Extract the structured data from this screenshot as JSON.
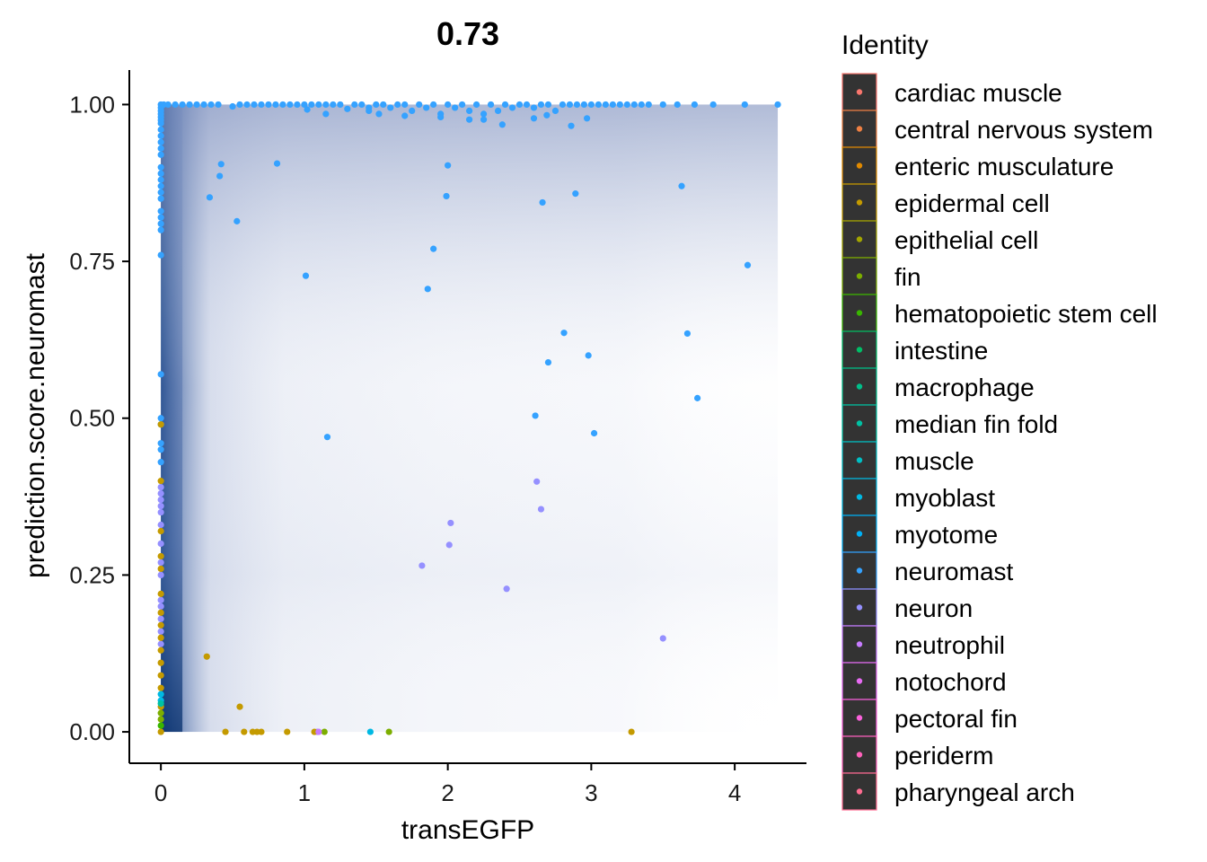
{
  "chart_data": {
    "type": "scatter",
    "title": "0.73",
    "xlabel": "transEGFP",
    "ylabel": "prediction.score.neuromast",
    "xlim": [
      -0.22,
      4.5
    ],
    "ylim": [
      -0.05,
      1.055
    ],
    "x_ticks": [
      "0",
      "1",
      "2",
      "3",
      "4"
    ],
    "x_tick_values": [
      0,
      1,
      2,
      3,
      4
    ],
    "y_ticks": [
      "0.00",
      "0.25",
      "0.50",
      "0.75",
      "1.00"
    ],
    "y_tick_values": [
      0,
      0.25,
      0.5,
      0.75,
      1.0
    ],
    "grid": false,
    "legend_position": "right",
    "density_overlay": true,
    "legend": {
      "title": "Identity",
      "items": [
        {
          "label": "cardiac muscle",
          "color": "#F8766D"
        },
        {
          "label": "central nervous system",
          "color": "#EE8043"
        },
        {
          "label": "enteric musculature",
          "color": "#E18A00"
        },
        {
          "label": "epidermal cell",
          "color": "#C49A00"
        },
        {
          "label": "epithelial cell",
          "color": "#A3A500"
        },
        {
          "label": "fin",
          "color": "#7CAE00"
        },
        {
          "label": "hematopoietic stem cell",
          "color": "#39B600"
        },
        {
          "label": "intestine",
          "color": "#00BE67"
        },
        {
          "label": "macrophage",
          "color": "#00BF8A"
        },
        {
          "label": "median fin fold",
          "color": "#00C1A3"
        },
        {
          "label": "muscle",
          "color": "#00BFC4"
        },
        {
          "label": "myoblast",
          "color": "#00B9E3"
        },
        {
          "label": "myotome",
          "color": "#00B0F6"
        },
        {
          "label": "neuromast",
          "color": "#35A2FF"
        },
        {
          "label": "neuron",
          "color": "#9590FF"
        },
        {
          "label": "neutrophil",
          "color": "#C77CFF"
        },
        {
          "label": "notochord",
          "color": "#E76BF3"
        },
        {
          "label": "pectoral fin",
          "color": "#FA62DB"
        },
        {
          "label": "periderm",
          "color": "#FF62BC"
        },
        {
          "label": "pharyngeal arch",
          "color": "#FF6C91"
        }
      ]
    },
    "series": [
      {
        "identity": "neuromast",
        "points": [
          [
            0,
            1.0
          ],
          [
            0,
            0.995
          ],
          [
            0,
            0.99
          ],
          [
            0,
            0.985
          ],
          [
            0,
            0.98
          ],
          [
            0,
            0.975
          ],
          [
            0,
            0.97
          ],
          [
            0,
            0.96
          ],
          [
            0,
            0.95
          ],
          [
            0,
            0.94
          ],
          [
            0,
            0.93
          ],
          [
            0,
            0.92
          ],
          [
            0,
            0.9
          ],
          [
            0,
            0.89
          ],
          [
            0,
            0.88
          ],
          [
            0,
            0.87
          ],
          [
            0,
            0.86
          ],
          [
            0,
            0.85
          ],
          [
            0,
            0.83
          ],
          [
            0,
            0.82
          ],
          [
            0,
            0.81
          ],
          [
            0,
            0.8
          ],
          [
            0,
            0.76
          ],
          [
            0,
            0.57
          ],
          [
            0,
            0.5
          ],
          [
            0,
            0.49
          ],
          [
            0,
            0.46
          ],
          [
            0,
            0.45
          ],
          [
            0,
            0.43
          ],
          [
            0.02,
            1.0
          ],
          [
            0.05,
            1.0
          ],
          [
            0.1,
            1.0
          ],
          [
            0.15,
            1.0
          ],
          [
            0.2,
            1.0
          ],
          [
            0.25,
            1.0
          ],
          [
            0.3,
            1.0
          ],
          [
            0.35,
            1.0
          ],
          [
            0.4,
            1.0
          ],
          [
            0.5,
            0.997
          ],
          [
            0.55,
            1.0
          ],
          [
            0.6,
            1.0
          ],
          [
            0.65,
            1.0
          ],
          [
            0.7,
            1.0
          ],
          [
            0.75,
            1.0
          ],
          [
            0.8,
            1.0
          ],
          [
            0.85,
            1.0
          ],
          [
            0.9,
            1.0
          ],
          [
            0.95,
            1.0
          ],
          [
            1.0,
            1.0
          ],
          [
            1.02,
            0.992
          ],
          [
            1.05,
            1.0
          ],
          [
            1.1,
            1.0
          ],
          [
            1.15,
            1.0
          ],
          [
            1.2,
            1.0
          ],
          [
            1.25,
            1.0
          ],
          [
            1.3,
            0.993
          ],
          [
            1.35,
            1.0
          ],
          [
            1.4,
            1.0
          ],
          [
            1.45,
            0.995
          ],
          [
            1.5,
            1.0
          ],
          [
            1.55,
            1.0
          ],
          [
            1.6,
            0.995
          ],
          [
            1.65,
            1.0
          ],
          [
            1.7,
            1.0
          ],
          [
            1.75,
            0.99
          ],
          [
            1.8,
            1.0
          ],
          [
            1.85,
            0.995
          ],
          [
            1.9,
            1.0
          ],
          [
            1.95,
            0.985
          ],
          [
            2.0,
            1.0
          ],
          [
            2.05,
            0.995
          ],
          [
            2.1,
            1.0
          ],
          [
            2.15,
            0.99
          ],
          [
            2.2,
            1.0
          ],
          [
            2.25,
            0.985
          ],
          [
            2.3,
            1.0
          ],
          [
            2.35,
            0.99
          ],
          [
            2.4,
            1.0
          ],
          [
            2.45,
            0.995
          ],
          [
            2.5,
            1.0
          ],
          [
            2.55,
            1.0
          ],
          [
            2.6,
            0.995
          ],
          [
            2.65,
            1.0
          ],
          [
            2.7,
            1.0
          ],
          [
            2.75,
            0.99
          ],
          [
            2.8,
            1.0
          ],
          [
            2.85,
            1.0
          ],
          [
            2.9,
            1.0
          ],
          [
            2.95,
            1.0
          ],
          [
            3.0,
            1.0
          ],
          [
            3.05,
            1.0
          ],
          [
            3.1,
            1.0
          ],
          [
            3.15,
            1.0
          ],
          [
            3.2,
            1.0
          ],
          [
            3.25,
            1.0
          ],
          [
            3.3,
            1.0
          ],
          [
            3.35,
            1.0
          ],
          [
            3.4,
            1.0
          ],
          [
            3.5,
            1.0
          ],
          [
            3.6,
            1.0
          ],
          [
            3.72,
            1.0
          ],
          [
            3.85,
            1.0
          ],
          [
            4.07,
            1.0
          ],
          [
            4.3,
            1.0
          ],
          [
            1.15,
            0.985
          ],
          [
            1.45,
            0.99
          ],
          [
            1.52,
            0.985
          ],
          [
            1.7,
            0.982
          ],
          [
            1.95,
            0.98
          ],
          [
            2.15,
            0.976
          ],
          [
            2.25,
            0.976
          ],
          [
            2.38,
            0.968
          ],
          [
            2.6,
            0.978
          ],
          [
            2.69,
            0.983
          ],
          [
            2.86,
            0.966
          ],
          [
            2.97,
            0.978
          ],
          [
            0.34,
            0.852
          ],
          [
            0.41,
            0.886
          ],
          [
            0.42,
            0.905
          ],
          [
            0.53,
            0.814
          ],
          [
            0.81,
            0.906
          ],
          [
            1.01,
            0.727
          ],
          [
            1.16,
            0.47
          ],
          [
            1.86,
            0.706
          ],
          [
            1.9,
            0.77
          ],
          [
            1.99,
            0.854
          ],
          [
            2.0,
            0.903
          ],
          [
            2.61,
            0.504
          ],
          [
            2.66,
            0.844
          ],
          [
            2.7,
            0.589
          ],
          [
            2.81,
            0.636
          ],
          [
            2.89,
            0.858
          ],
          [
            2.98,
            0.6
          ],
          [
            3.02,
            0.476
          ],
          [
            3.63,
            0.87
          ],
          [
            3.67,
            0.635
          ],
          [
            3.74,
            0.532
          ],
          [
            4.09,
            0.744
          ]
        ]
      },
      {
        "identity": "neuron",
        "points": [
          [
            1.82,
            0.265
          ],
          [
            2.01,
            0.298
          ],
          [
            2.02,
            0.333
          ],
          [
            2.41,
            0.228
          ],
          [
            2.62,
            0.399
          ],
          [
            2.65,
            0.355
          ],
          [
            3.5,
            0.149
          ],
          [
            1.09,
            0.0
          ],
          [
            0,
            0.39
          ],
          [
            0,
            0.38
          ],
          [
            0,
            0.37
          ],
          [
            0,
            0.36
          ],
          [
            0,
            0.35
          ],
          [
            0,
            0.33
          ],
          [
            0,
            0.3
          ],
          [
            0,
            0.27
          ],
          [
            0,
            0.25
          ],
          [
            0,
            0.21
          ],
          [
            0,
            0.2
          ],
          [
            0,
            0.18
          ],
          [
            0,
            0.16
          ],
          [
            0,
            0.14
          ]
        ]
      },
      {
        "identity": "epidermal cell",
        "points": [
          [
            0.32,
            0.12
          ],
          [
            0.55,
            0.04
          ],
          [
            0.45,
            0.0
          ],
          [
            0.58,
            0.0
          ],
          [
            0.64,
            0.0
          ],
          [
            0.67,
            0.0
          ],
          [
            0.7,
            0.0
          ],
          [
            0.88,
            0.0
          ],
          [
            1.07,
            0.0
          ],
          [
            3.28,
            0.0
          ],
          [
            0,
            0.49
          ],
          [
            0,
            0.4
          ],
          [
            0,
            0.32
          ],
          [
            0,
            0.28
          ],
          [
            0,
            0.26
          ],
          [
            0,
            0.22
          ],
          [
            0,
            0.19
          ],
          [
            0,
            0.17
          ],
          [
            0,
            0.15
          ],
          [
            0,
            0.13
          ],
          [
            0,
            0.11
          ],
          [
            0,
            0.09
          ],
          [
            0,
            0.07
          ],
          [
            0,
            0.04
          ],
          [
            0,
            0.0
          ]
        ]
      },
      {
        "identity": "fin",
        "points": [
          [
            1.14,
            0.0
          ],
          [
            1.59,
            0.0
          ],
          [
            0,
            0.03
          ],
          [
            0,
            0.02
          ]
        ]
      },
      {
        "identity": "hematopoietic stem cell",
        "points": [
          [
            0,
            0.01
          ]
        ]
      },
      {
        "identity": "myoblast",
        "points": [
          [
            1.46,
            0.0
          ],
          [
            0,
            0.06
          ],
          [
            0,
            0.05
          ]
        ]
      },
      {
        "identity": "median fin fold",
        "points": [
          [
            0,
            0.045
          ]
        ]
      },
      {
        "identity": "neutrophil",
        "points": [
          [
            1.1,
            0.0
          ]
        ]
      }
    ]
  }
}
